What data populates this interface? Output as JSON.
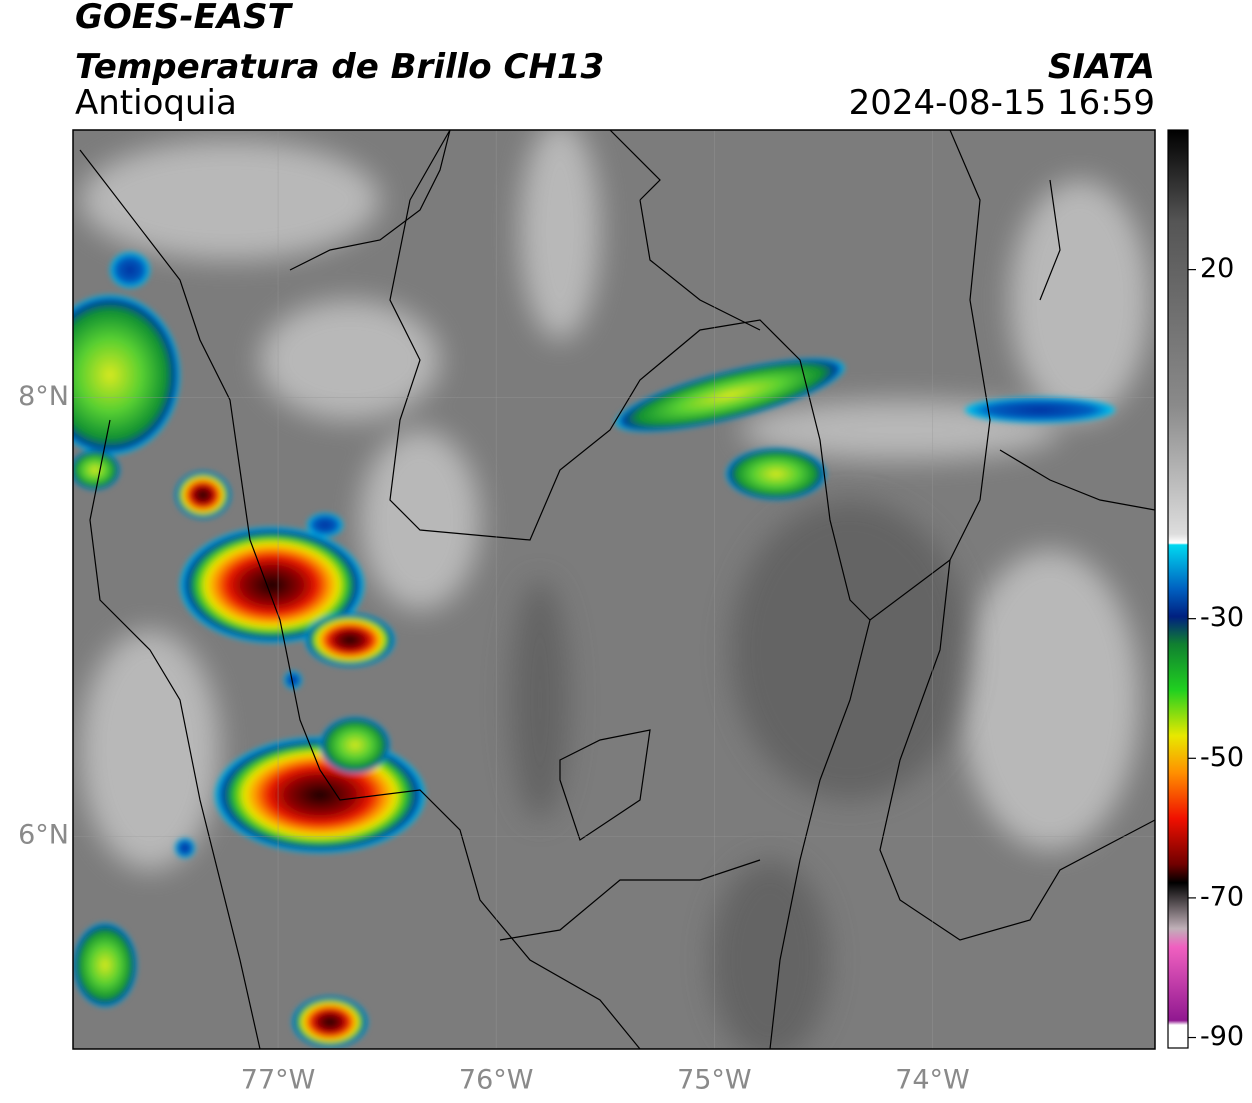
{
  "header": {
    "satellite": "GOES-EAST",
    "product": "Temperatura de Brillo CH13",
    "region": "Antioquia",
    "source": "SIATA",
    "datetime": "2024-08-15 16:59"
  },
  "map": {
    "xlim": [
      -77.94,
      -72.98
    ],
    "ylim": [
      5.03,
      9.22
    ],
    "xticks": [
      {
        "value": -77,
        "label": "77°W"
      },
      {
        "value": -76,
        "label": "76°W"
      },
      {
        "value": -75,
        "label": "75°W"
      },
      {
        "value": -74,
        "label": "74°W"
      }
    ],
    "yticks": [
      {
        "value": 6,
        "label": "6°N"
      },
      {
        "value": 8,
        "label": "8°N"
      }
    ],
    "grid": true,
    "colorbar": {
      "lim": [
        -91.5,
        40
      ],
      "ticks": [
        20,
        -30,
        -50,
        -70,
        -90
      ]
    }
  }
}
